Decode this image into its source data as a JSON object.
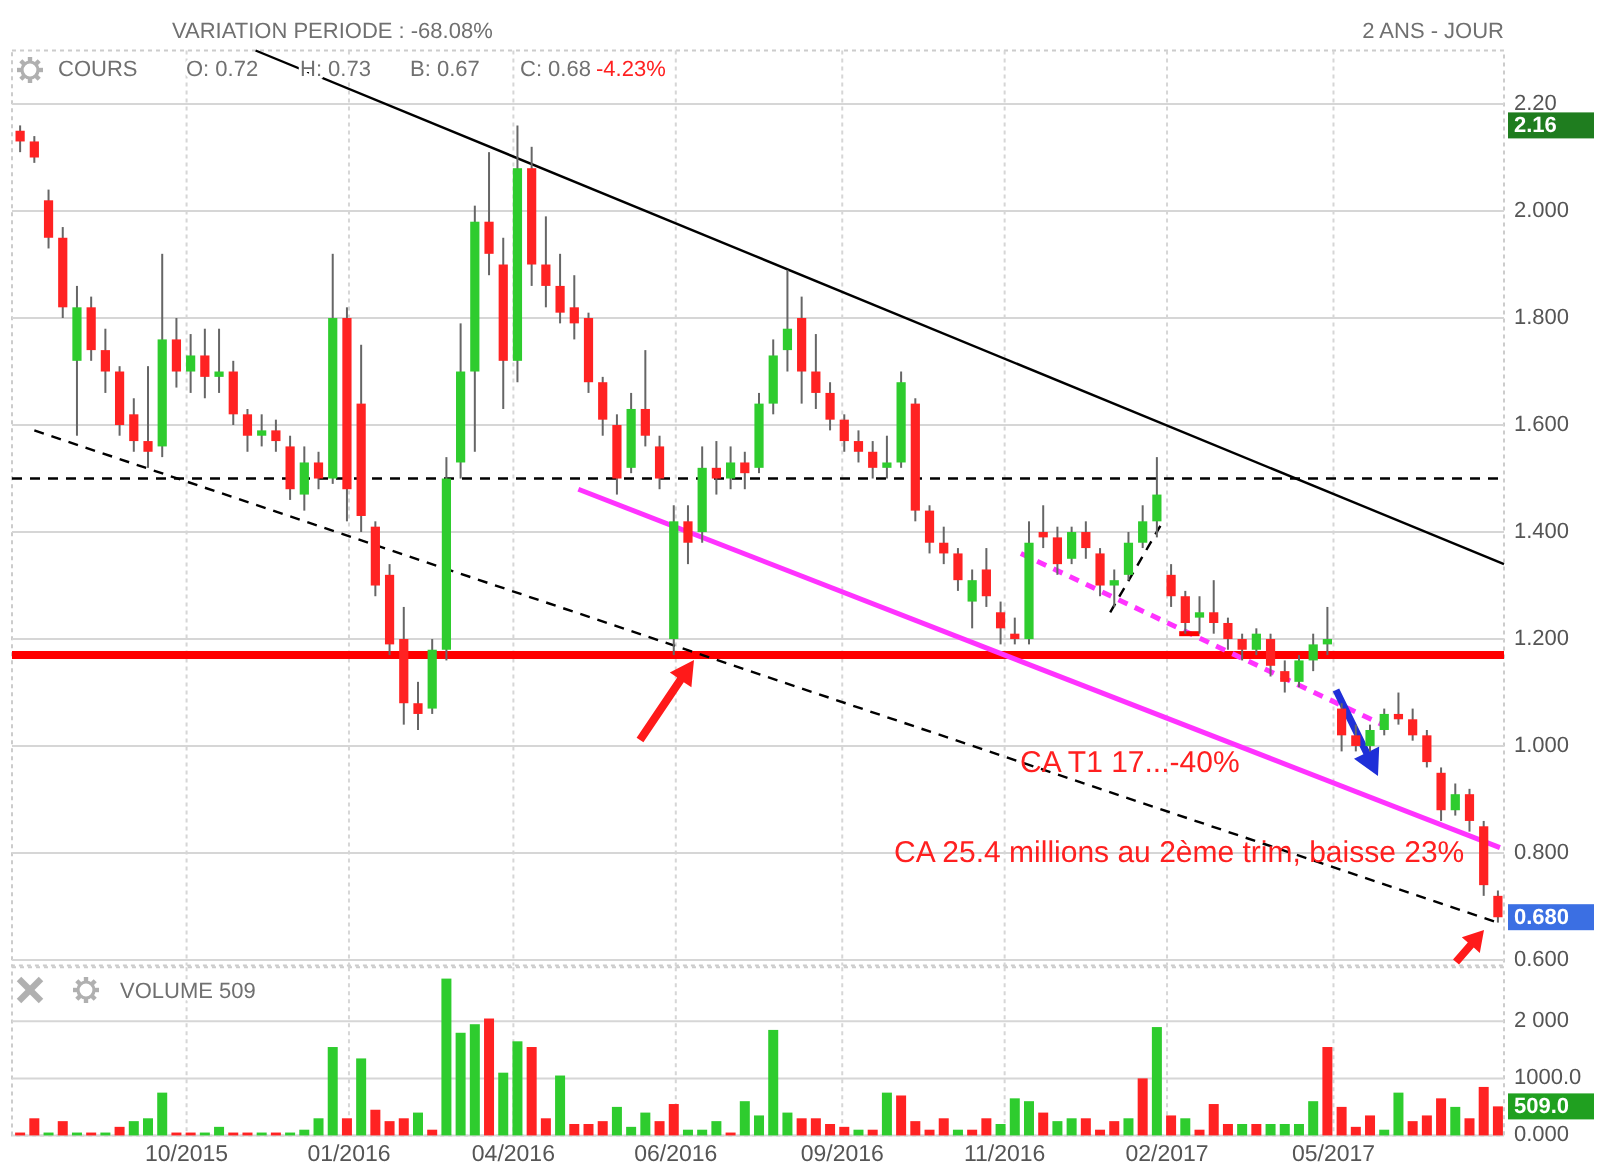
{
  "chart_data": [
    {
      "type": "candlestick",
      "subtitle": "VARIATION PERIODE : -68.08%",
      "x": [
        "2015-08-03",
        "2015-08-10",
        "2015-08-17",
        "2015-08-24",
        "2015-08-31",
        "2015-09-07",
        "2015-09-14",
        "2015-09-21",
        "2015-09-28",
        "2015-10-05",
        "2015-10-12",
        "2015-10-19",
        "2015-10-26",
        "2015-11-02",
        "2015-11-09",
        "2015-11-16",
        "2015-11-23",
        "2015-11-30",
        "2015-12-07",
        "2015-12-14",
        "2015-12-21",
        "2015-12-28",
        "2016-01-04",
        "2016-01-11",
        "2016-01-18",
        "2016-01-25",
        "2016-02-01",
        "2016-02-08",
        "2016-02-15",
        "2016-02-22",
        "2016-02-29",
        "2016-03-07",
        "2016-03-14",
        "2016-03-21",
        "2016-03-28",
        "2016-04-04",
        "2016-04-11",
        "2016-04-18",
        "2016-04-25",
        "2016-05-02",
        "2016-05-09",
        "2016-05-16",
        "2016-05-23",
        "2016-05-30",
        "2016-06-06",
        "2016-06-13",
        "2016-06-20",
        "2016-06-27",
        "2016-07-04",
        "2016-07-11",
        "2016-07-18",
        "2016-07-25",
        "2016-08-01",
        "2016-08-08",
        "2016-08-15",
        "2016-08-22",
        "2016-08-29",
        "2016-09-05",
        "2016-09-12",
        "2016-09-19",
        "2016-09-26",
        "2016-10-03",
        "2016-10-10",
        "2016-10-17",
        "2016-10-24",
        "2016-10-31",
        "2016-11-07",
        "2016-11-14",
        "2016-11-21",
        "2016-11-28",
        "2016-12-05",
        "2016-12-12",
        "2016-12-19",
        "2016-12-26",
        "2017-01-02",
        "2017-01-09",
        "2017-01-16",
        "2017-01-23",
        "2017-01-30",
        "2017-02-06",
        "2017-02-13",
        "2017-02-20",
        "2017-02-27",
        "2017-03-06",
        "2017-03-13",
        "2017-03-20",
        "2017-03-27",
        "2017-04-03",
        "2017-04-10",
        "2017-04-17",
        "2017-04-24",
        "2017-05-01",
        "2017-05-08",
        "2017-05-15",
        "2017-05-22",
        "2017-05-29",
        "2017-06-05",
        "2017-06-12",
        "2017-06-19",
        "2017-06-26",
        "2017-07-03",
        "2017-07-10",
        "2017-07-17",
        "2017-07-24",
        "2017-07-31"
      ],
      "ohlc": [
        [
          2.15,
          2.16,
          2.11,
          2.13
        ],
        [
          2.13,
          2.14,
          2.09,
          2.1
        ],
        [
          2.02,
          2.04,
          1.93,
          1.95
        ],
        [
          1.95,
          1.97,
          1.8,
          1.82
        ],
        [
          1.72,
          1.86,
          1.58,
          1.82
        ],
        [
          1.82,
          1.84,
          1.72,
          1.74
        ],
        [
          1.74,
          1.78,
          1.66,
          1.7
        ],
        [
          1.7,
          1.71,
          1.58,
          1.6
        ],
        [
          1.62,
          1.65,
          1.55,
          1.57
        ],
        [
          1.57,
          1.71,
          1.52,
          1.55
        ],
        [
          1.56,
          1.92,
          1.54,
          1.76
        ],
        [
          1.76,
          1.8,
          1.67,
          1.7
        ],
        [
          1.7,
          1.77,
          1.66,
          1.73
        ],
        [
          1.73,
          1.78,
          1.65,
          1.69
        ],
        [
          1.69,
          1.78,
          1.66,
          1.7
        ],
        [
          1.7,
          1.72,
          1.6,
          1.62
        ],
        [
          1.62,
          1.63,
          1.55,
          1.58
        ],
        [
          1.58,
          1.62,
          1.56,
          1.59
        ],
        [
          1.59,
          1.61,
          1.55,
          1.57
        ],
        [
          1.56,
          1.58,
          1.46,
          1.48
        ],
        [
          1.47,
          1.56,
          1.44,
          1.53
        ],
        [
          1.53,
          1.55,
          1.48,
          1.5
        ],
        [
          1.5,
          1.92,
          1.49,
          1.8
        ],
        [
          1.8,
          1.82,
          1.42,
          1.48
        ],
        [
          1.64,
          1.75,
          1.4,
          1.43
        ],
        [
          1.41,
          1.42,
          1.28,
          1.3
        ],
        [
          1.32,
          1.34,
          1.17,
          1.19
        ],
        [
          1.2,
          1.26,
          1.04,
          1.08
        ],
        [
          1.08,
          1.12,
          1.03,
          1.06
        ],
        [
          1.07,
          1.2,
          1.06,
          1.18
        ],
        [
          1.18,
          1.54,
          1.16,
          1.5
        ],
        [
          1.53,
          1.79,
          1.5,
          1.7
        ],
        [
          1.7,
          2.01,
          1.55,
          1.98
        ],
        [
          1.98,
          2.11,
          1.88,
          1.92
        ],
        [
          1.9,
          1.95,
          1.63,
          1.72
        ],
        [
          1.72,
          2.16,
          1.68,
          2.08
        ],
        [
          2.08,
          2.12,
          1.86,
          1.9
        ],
        [
          1.9,
          1.99,
          1.82,
          1.86
        ],
        [
          1.86,
          1.92,
          1.79,
          1.81
        ],
        [
          1.82,
          1.88,
          1.76,
          1.79
        ],
        [
          1.8,
          1.81,
          1.66,
          1.68
        ],
        [
          1.68,
          1.69,
          1.58,
          1.61
        ],
        [
          1.6,
          1.62,
          1.47,
          1.5
        ],
        [
          1.52,
          1.66,
          1.51,
          1.63
        ],
        [
          1.63,
          1.74,
          1.56,
          1.58
        ],
        [
          1.56,
          1.58,
          1.48,
          1.5
        ],
        [
          1.2,
          1.45,
          1.17,
          1.42
        ],
        [
          1.42,
          1.45,
          1.34,
          1.38
        ],
        [
          1.4,
          1.56,
          1.38,
          1.52
        ],
        [
          1.52,
          1.57,
          1.47,
          1.5
        ],
        [
          1.5,
          1.56,
          1.48,
          1.53
        ],
        [
          1.53,
          1.55,
          1.48,
          1.51
        ],
        [
          1.52,
          1.66,
          1.51,
          1.64
        ],
        [
          1.64,
          1.76,
          1.62,
          1.73
        ],
        [
          1.74,
          1.89,
          1.7,
          1.78
        ],
        [
          1.8,
          1.84,
          1.64,
          1.7
        ],
        [
          1.7,
          1.77,
          1.63,
          1.66
        ],
        [
          1.66,
          1.68,
          1.59,
          1.61
        ],
        [
          1.61,
          1.62,
          1.55,
          1.57
        ],
        [
          1.57,
          1.59,
          1.53,
          1.55
        ],
        [
          1.55,
          1.57,
          1.5,
          1.52
        ],
        [
          1.52,
          1.58,
          1.5,
          1.53
        ],
        [
          1.53,
          1.7,
          1.52,
          1.68
        ],
        [
          1.64,
          1.65,
          1.42,
          1.44
        ],
        [
          1.44,
          1.45,
          1.36,
          1.38
        ],
        [
          1.38,
          1.41,
          1.34,
          1.36
        ],
        [
          1.36,
          1.37,
          1.29,
          1.31
        ],
        [
          1.27,
          1.33,
          1.22,
          1.31
        ],
        [
          1.33,
          1.37,
          1.26,
          1.28
        ],
        [
          1.25,
          1.27,
          1.19,
          1.22
        ],
        [
          1.21,
          1.24,
          1.19,
          1.2
        ],
        [
          1.2,
          1.42,
          1.19,
          1.38
        ],
        [
          1.4,
          1.45,
          1.37,
          1.39
        ],
        [
          1.39,
          1.41,
          1.32,
          1.34
        ],
        [
          1.35,
          1.41,
          1.34,
          1.4
        ],
        [
          1.4,
          1.42,
          1.35,
          1.37
        ],
        [
          1.36,
          1.37,
          1.28,
          1.3
        ],
        [
          1.3,
          1.33,
          1.26,
          1.31
        ],
        [
          1.32,
          1.4,
          1.31,
          1.38
        ],
        [
          1.38,
          1.45,
          1.37,
          1.42
        ],
        [
          1.42,
          1.54,
          1.39,
          1.47
        ],
        [
          1.32,
          1.34,
          1.26,
          1.28
        ],
        [
          1.28,
          1.29,
          1.21,
          1.23
        ],
        [
          1.24,
          1.28,
          1.21,
          1.25
        ],
        [
          1.25,
          1.31,
          1.21,
          1.23
        ],
        [
          1.23,
          1.24,
          1.18,
          1.2
        ],
        [
          1.2,
          1.21,
          1.16,
          1.18
        ],
        [
          1.18,
          1.22,
          1.17,
          1.21
        ],
        [
          1.2,
          1.21,
          1.13,
          1.15
        ],
        [
          1.14,
          1.16,
          1.1,
          1.12
        ],
        [
          1.12,
          1.17,
          1.11,
          1.16
        ],
        [
          1.16,
          1.21,
          1.14,
          1.19
        ],
        [
          1.19,
          1.26,
          1.17,
          1.2
        ],
        [
          1.07,
          1.08,
          0.99,
          1.02
        ],
        [
          1.02,
          1.04,
          0.99,
          1.0
        ],
        [
          1.0,
          1.04,
          0.99,
          1.03
        ],
        [
          1.03,
          1.07,
          1.02,
          1.06
        ],
        [
          1.06,
          1.1,
          1.04,
          1.05
        ],
        [
          1.05,
          1.07,
          1.01,
          1.02
        ],
        [
          1.02,
          1.03,
          0.96,
          0.97
        ],
        [
          0.95,
          0.96,
          0.86,
          0.88
        ],
        [
          0.88,
          0.93,
          0.87,
          0.91
        ],
        [
          0.91,
          0.92,
          0.84,
          0.86
        ],
        [
          0.85,
          0.86,
          0.72,
          0.74
        ],
        [
          0.72,
          0.73,
          0.67,
          0.68
        ]
      ],
      "colors": [
        "#ff2222",
        "#ff2222",
        "#ff2222",
        "#ff2222",
        "#2ecc2e",
        "#ff2222",
        "#ff2222",
        "#ff2222",
        "#ff2222",
        "#ff2222",
        "#2ecc2e",
        "#ff2222",
        "#2ecc2e",
        "#ff2222",
        "#2ecc2e",
        "#ff2222",
        "#ff2222",
        "#2ecc2e",
        "#ff2222",
        "#ff2222",
        "#2ecc2e",
        "#ff2222",
        "#2ecc2e",
        "#ff2222",
        "#ff2222",
        "#ff2222",
        "#ff2222",
        "#ff2222",
        "#ff2222",
        "#2ecc2e",
        "#2ecc2e",
        "#2ecc2e",
        "#2ecc2e",
        "#ff2222",
        "#ff2222",
        "#2ecc2e",
        "#ff2222",
        "#ff2222",
        "#ff2222",
        "#ff2222",
        "#ff2222",
        "#ff2222",
        "#ff2222",
        "#2ecc2e",
        "#ff2222",
        "#ff2222",
        "#2ecc2e",
        "#ff2222",
        "#2ecc2e",
        "#ff2222",
        "#2ecc2e",
        "#ff2222",
        "#2ecc2e",
        "#2ecc2e",
        "#2ecc2e",
        "#ff2222",
        "#ff2222",
        "#ff2222",
        "#ff2222",
        "#ff2222",
        "#ff2222",
        "#2ecc2e",
        "#2ecc2e",
        "#ff2222",
        "#ff2222",
        "#ff2222",
        "#ff2222",
        "#2ecc2e",
        "#ff2222",
        "#ff2222",
        "#ff2222",
        "#2ecc2e",
        "#ff2222",
        "#ff2222",
        "#2ecc2e",
        "#ff2222",
        "#ff2222",
        "#2ecc2e",
        "#2ecc2e",
        "#2ecc2e",
        "#2ecc2e",
        "#ff2222",
        "#ff2222",
        "#2ecc2e",
        "#ff2222",
        "#ff2222",
        "#ff2222",
        "#2ecc2e",
        "#ff2222",
        "#ff2222",
        "#2ecc2e",
        "#2ecc2e",
        "#2ecc2e",
        "#ff2222",
        "#ff2222",
        "#2ecc2e",
        "#2ecc2e",
        "#ff2222",
        "#ff2222",
        "#ff2222",
        "#ff2222",
        "#2ecc2e",
        "#ff2222",
        "#ff2222",
        "#ff2222"
      ],
      "series": [
        {
          "type": "line",
          "x": [
            "2015-11-27",
            "2017-08-03"
          ],
          "values": [
            2.3,
            1.34
          ],
          "color": "#000000",
          "line_style": "solid"
        },
        {
          "type": "line",
          "x": [
            "2015-08-10",
            "2017-07-31"
          ],
          "values": [
            1.59,
            0.67
          ],
          "color": "#000000",
          "line_style": "dashed"
        },
        {
          "type": "line",
          "x": [
            "2016-05-04",
            "2017-08-01"
          ],
          "values": [
            1.48,
            0.81
          ],
          "color": "#ff33ff",
          "line_style": "solid"
        },
        {
          "type": "line",
          "x": [
            "2016-12-08",
            "2017-06-04"
          ],
          "values": [
            1.36,
            1.04
          ],
          "color": "#ff33ff",
          "line_style": "dashed"
        },
        {
          "type": "line",
          "x": [
            "2017-01-21",
            "2017-02-16"
          ],
          "values": [
            1.25,
            1.42
          ],
          "color": "#000000",
          "line_style": "dashed"
        },
        {
          "type": "line",
          "x": [
            "2017-02-24",
            "2017-03-06"
          ],
          "values": [
            1.21,
            1.21
          ],
          "color": "#ff0000",
          "line_style": "solid"
        }
      ],
      "xlim": [
        "2015-07-30",
        "2017-08-03"
      ],
      "xticks": [
        {
          "value": "2015-10-24",
          "label": null
        },
        {
          "value": "2016-01-12",
          "label": null
        },
        {
          "value": "2016-04-02",
          "label": null
        },
        {
          "value": "2016-06-21",
          "label": null
        },
        {
          "value": "2016-09-11",
          "label": null
        },
        {
          "value": "2016-11-30",
          "label": null
        },
        {
          "value": "2017-02-18",
          "label": null
        },
        {
          "value": "2017-05-11",
          "label": null
        }
      ],
      "ylim": [
        0.59,
        2.3
      ],
      "yticks": [
        {
          "value": 0.6,
          "label": "0.600"
        },
        {
          "value": 0.8,
          "label": "0.800"
        },
        {
          "value": 1.0,
          "label": "1.000"
        },
        {
          "value": 1.2,
          "label": "1.200"
        },
        {
          "value": 1.4,
          "label": "1.400"
        },
        {
          "value": 1.6,
          "label": "1.600"
        },
        {
          "value": 1.8,
          "label": "1.800"
        },
        {
          "value": 2.0,
          "label": "2.000"
        },
        {
          "value": 2.2,
          "label": "2.20"
        }
      ],
      "grid": true,
      "tick_labels": "y",
      "ref_lines": [
        {
          "axis": "y",
          "value": 1.5,
          "color": "#000000",
          "line_style": "dashed"
        },
        {
          "axis": "y",
          "value": 1.17,
          "color": "#ff0000",
          "line_style": "solid"
        }
      ],
      "annotations": [
        "COURS",
        "O: 0.72",
        "H: 0.73",
        "B: 0.67",
        "C: 0.68",
        "-4.23%",
        "2 ANS - JOUR",
        "CA T1 17...-40%",
        "CA 25.4 millions au 2ème trim, baisse 23%",
        "2.16",
        "0.680"
      ]
    },
    {
      "type": "bar",
      "x": [
        "2015-08-03",
        "2015-08-10",
        "2015-08-17",
        "2015-08-24",
        "2015-08-31",
        "2015-09-07",
        "2015-09-14",
        "2015-09-21",
        "2015-09-28",
        "2015-10-05",
        "2015-10-12",
        "2015-10-19",
        "2015-10-26",
        "2015-11-02",
        "2015-11-09",
        "2015-11-16",
        "2015-11-23",
        "2015-11-30",
        "2015-12-07",
        "2015-12-14",
        "2015-12-21",
        "2015-12-28",
        "2016-01-04",
        "2016-01-11",
        "2016-01-18",
        "2016-01-25",
        "2016-02-01",
        "2016-02-08",
        "2016-02-15",
        "2016-02-22",
        "2016-02-29",
        "2016-03-07",
        "2016-03-14",
        "2016-03-21",
        "2016-03-28",
        "2016-04-04",
        "2016-04-11",
        "2016-04-18",
        "2016-04-25",
        "2016-05-02",
        "2016-05-09",
        "2016-05-16",
        "2016-05-23",
        "2016-05-30",
        "2016-06-06",
        "2016-06-13",
        "2016-06-20",
        "2016-06-27",
        "2016-07-04",
        "2016-07-11",
        "2016-07-18",
        "2016-07-25",
        "2016-08-01",
        "2016-08-08",
        "2016-08-15",
        "2016-08-22",
        "2016-08-29",
        "2016-09-05",
        "2016-09-12",
        "2016-09-19",
        "2016-09-26",
        "2016-10-03",
        "2016-10-10",
        "2016-10-17",
        "2016-10-24",
        "2016-10-31",
        "2016-11-07",
        "2016-11-14",
        "2016-11-21",
        "2016-11-28",
        "2016-12-05",
        "2016-12-12",
        "2016-12-19",
        "2016-12-26",
        "2017-01-02",
        "2017-01-09",
        "2017-01-16",
        "2017-01-23",
        "2017-01-30",
        "2017-02-06",
        "2017-02-13",
        "2017-02-20",
        "2017-02-27",
        "2017-03-06",
        "2017-03-13",
        "2017-03-20",
        "2017-03-27",
        "2017-04-03",
        "2017-04-10",
        "2017-04-17",
        "2017-04-24",
        "2017-05-01",
        "2017-05-08",
        "2017-05-15",
        "2017-05-22",
        "2017-05-29",
        "2017-06-05",
        "2017-06-12",
        "2017-06-19",
        "2017-06-26",
        "2017-07-03",
        "2017-07-10",
        "2017-07-17",
        "2017-07-24",
        "2017-07-31"
      ],
      "values": [
        50,
        300,
        50,
        250,
        50,
        50,
        50,
        150,
        250,
        300,
        750,
        50,
        50,
        50,
        150,
        50,
        50,
        50,
        50,
        50,
        100,
        300,
        1550,
        300,
        1350,
        450,
        250,
        300,
        400,
        100,
        2750,
        1800,
        1950,
        2050,
        1100,
        1650,
        1550,
        300,
        1050,
        200,
        200,
        250,
        500,
        150,
        400,
        250,
        550,
        100,
        100,
        250,
        50,
        600,
        350,
        1850,
        400,
        300,
        300,
        200,
        150,
        100,
        100,
        750,
        700,
        250,
        100,
        300,
        100,
        100,
        300,
        200,
        650,
        600,
        400,
        250,
        300,
        300,
        100,
        250,
        300,
        1000,
        1900,
        350,
        300,
        100,
        550,
        200,
        200,
        200,
        200,
        200,
        200,
        600,
        1550,
        500,
        150,
        350,
        100,
        750,
        250,
        350,
        650,
        500,
        300,
        850,
        509
      ],
      "colors": [
        "#ff2222",
        "#ff2222",
        "#2ecc2e",
        "#ff2222",
        "#2ecc2e",
        "#ff2222",
        "#2ecc2e",
        "#ff2222",
        "#2ecc2e",
        "#2ecc2e",
        "#2ecc2e",
        "#ff2222",
        "#ff2222",
        "#2ecc2e",
        "#2ecc2e",
        "#ff2222",
        "#ff2222",
        "#2ecc2e",
        "#ff2222",
        "#2ecc2e",
        "#2ecc2e",
        "#2ecc2e",
        "#2ecc2e",
        "#ff2222",
        "#2ecc2e",
        "#ff2222",
        "#ff2222",
        "#ff2222",
        "#2ecc2e",
        "#ff2222",
        "#2ecc2e",
        "#2ecc2e",
        "#2ecc2e",
        "#ff2222",
        "#2ecc2e",
        "#2ecc2e",
        "#ff2222",
        "#ff2222",
        "#2ecc2e",
        "#ff2222",
        "#ff2222",
        "#ff2222",
        "#2ecc2e",
        "#2ecc2e",
        "#2ecc2e",
        "#ff2222",
        "#ff2222",
        "#2ecc2e",
        "#2ecc2e",
        "#2ecc2e",
        "#ff2222",
        "#2ecc2e",
        "#2ecc2e",
        "#2ecc2e",
        "#2ecc2e",
        "#ff2222",
        "#ff2222",
        "#ff2222",
        "#ff2222",
        "#2ecc2e",
        "#ff2222",
        "#2ecc2e",
        "#ff2222",
        "#ff2222",
        "#ff2222",
        "#ff2222",
        "#2ecc2e",
        "#ff2222",
        "#ff2222",
        "#2ecc2e",
        "#2ecc2e",
        "#2ecc2e",
        "#ff2222",
        "#2ecc2e",
        "#2ecc2e",
        "#ff2222",
        "#ff2222",
        "#ff2222",
        "#2ecc2e",
        "#ff2222",
        "#2ecc2e",
        "#ff2222",
        "#2ecc2e",
        "#ff2222",
        "#ff2222",
        "#ff2222",
        "#2ecc2e",
        "#ff2222",
        "#2ecc2e",
        "#2ecc2e",
        "#2ecc2e",
        "#2ecc2e",
        "#ff2222",
        "#ff2222",
        "#ff2222",
        "#ff2222",
        "#2ecc2e",
        "#2ecc2e",
        "#ff2222",
        "#ff2222",
        "#ff2222",
        "#2ecc2e",
        "#ff2222",
        "#ff2222",
        "#ff2222"
      ],
      "xlim": [
        "2015-07-30",
        "2017-08-03"
      ],
      "xticks": [
        {
          "value": "2015-10-24",
          "label": "10/2015"
        },
        {
          "value": "2016-01-12",
          "label": "01/2016"
        },
        {
          "value": "2016-04-02",
          "label": "04/2016"
        },
        {
          "value": "2016-06-21",
          "label": "06/2016"
        },
        {
          "value": "2016-09-11",
          "label": "09/2016"
        },
        {
          "value": "2016-11-30",
          "label": "11/2016"
        },
        {
          "value": "2017-02-18",
          "label": "02/2017"
        },
        {
          "value": "2017-05-11",
          "label": "05/2017"
        }
      ],
      "ylim": [
        0,
        2950
      ],
      "yticks": [
        {
          "value": 0,
          "label": "0.000"
        },
        {
          "value": 1000,
          "label": "1000.0"
        },
        {
          "value": 2000,
          "label": "2 000"
        }
      ],
      "grid": true,
      "annotations": [
        "VOLUME 509",
        "509.0"
      ]
    }
  ]
}
